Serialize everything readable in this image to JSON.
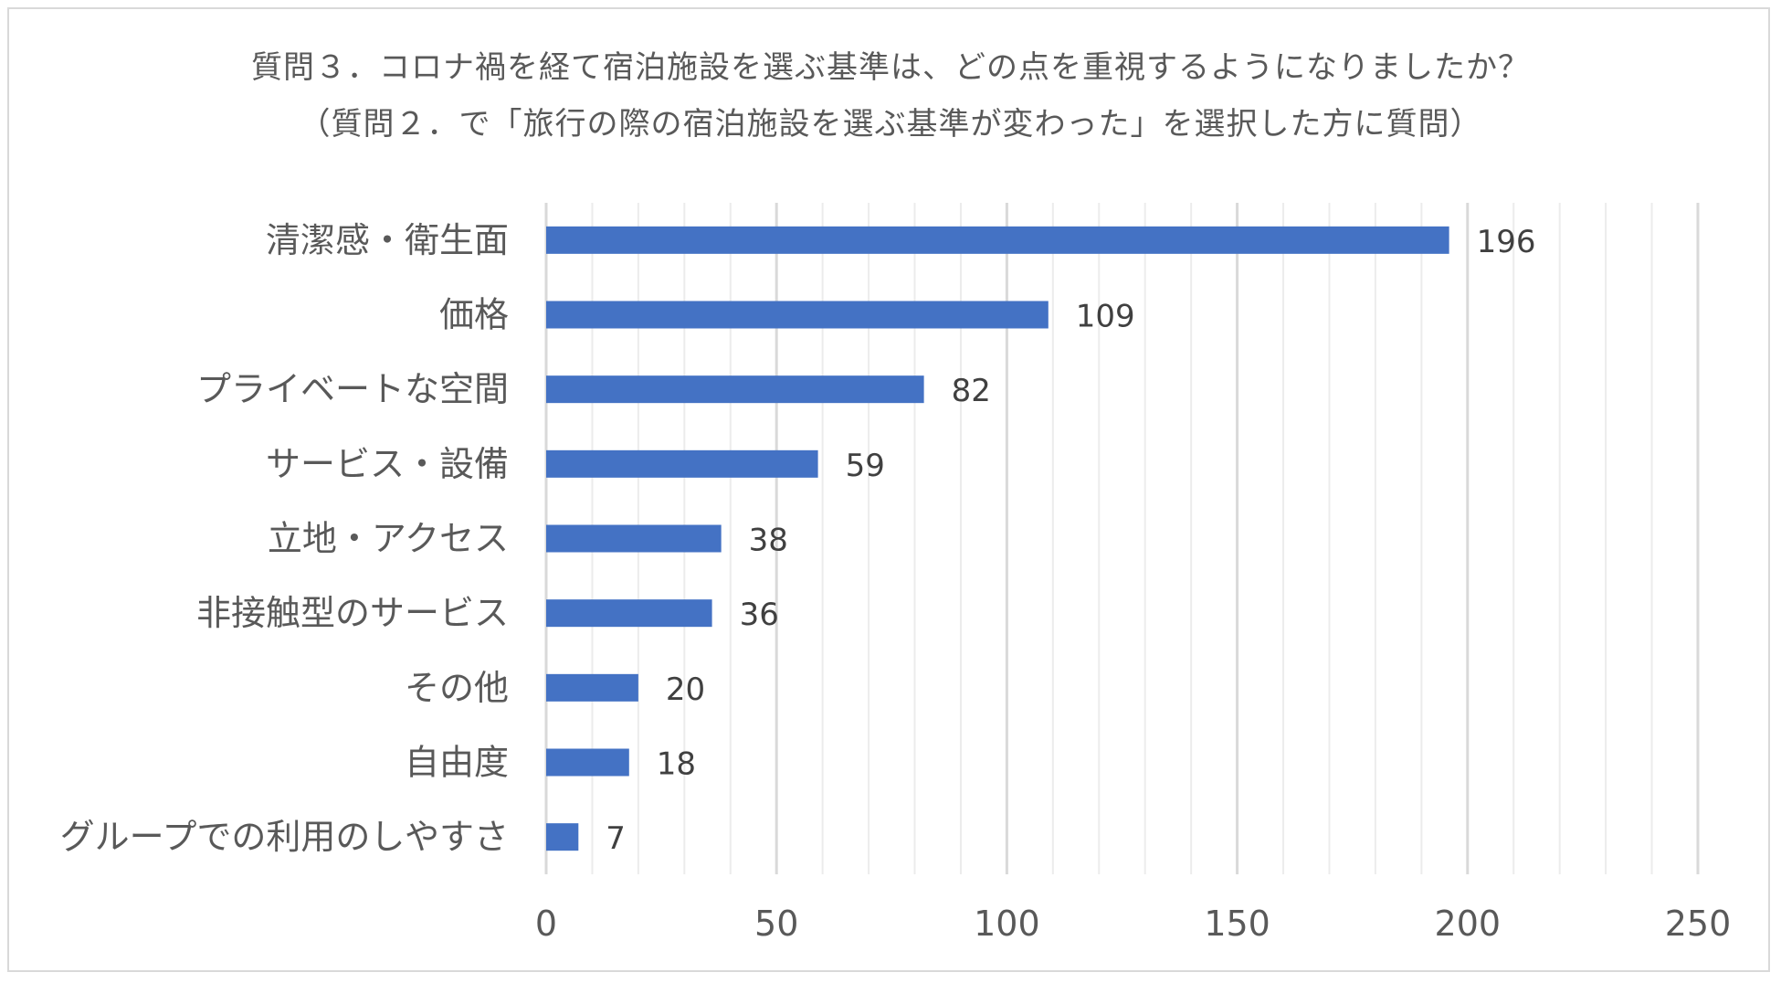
{
  "chart_data": {
    "type": "bar",
    "orientation": "horizontal",
    "title": "質問３．コロナ禍を経て宿泊施設を選ぶ基準は、どの点を重視するようになりましたか？",
    "subtitle": "（質問２．で「旅行の際の宿泊施設を選ぶ基準が変わった」を選択した方に質問）",
    "categories": [
      "清潔感・衛生面",
      "価格",
      "プライベートな空間",
      "サービス・設備",
      "立地・アクセス",
      "非接触型のサービス",
      "その他",
      "自由度",
      "グループでの利用のしやすさ"
    ],
    "values": [
      196,
      109,
      82,
      59,
      38,
      36,
      20,
      18,
      7
    ],
    "xlim": [
      0,
      250
    ],
    "ticks": [
      0,
      50,
      100,
      150,
      200,
      250
    ],
    "tick_labels": [
      "0",
      "50",
      "100",
      "150",
      "200",
      "250"
    ],
    "data_labels": true,
    "grid": "vertical major and minor",
    "legend": "none",
    "bar_color": "#4472C4",
    "major_grid_color": "#d9d9d9",
    "minor_grid_color": "#ececec"
  }
}
